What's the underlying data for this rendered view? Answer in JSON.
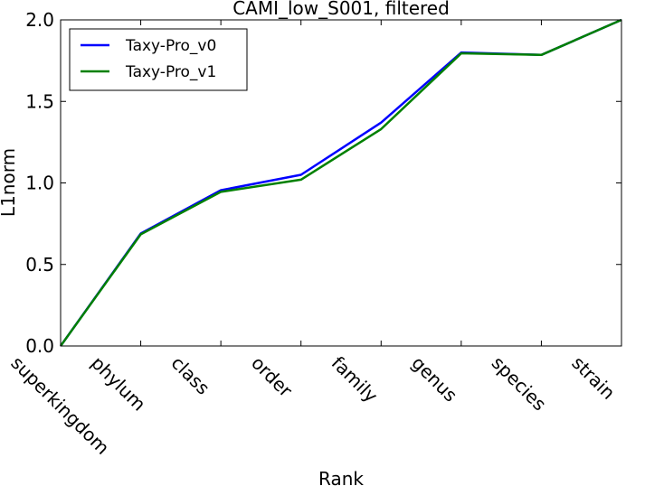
{
  "chart_data": {
    "type": "line",
    "title": "CAMI_low_S001, filtered",
    "xlabel": "Rank",
    "ylabel": "L1norm",
    "categories": [
      "superkingdom",
      "phylum",
      "class",
      "order",
      "family",
      "genus",
      "species",
      "strain"
    ],
    "ylim": [
      0.0,
      2.0
    ],
    "yticks": [
      "0.0",
      "0.5",
      "1.0",
      "1.5",
      "2.0"
    ],
    "grid": false,
    "legend_position": "top-left",
    "series": [
      {
        "name": "Taxy-Pro_v0",
        "color": "#0000ff",
        "values": [
          0.0,
          0.69,
          0.955,
          1.05,
          1.37,
          1.8,
          1.785,
          2.0
        ]
      },
      {
        "name": "Taxy-Pro_v1",
        "color": "#008000",
        "values": [
          0.0,
          0.685,
          0.945,
          1.02,
          1.33,
          1.795,
          1.785,
          2.0
        ]
      }
    ]
  }
}
